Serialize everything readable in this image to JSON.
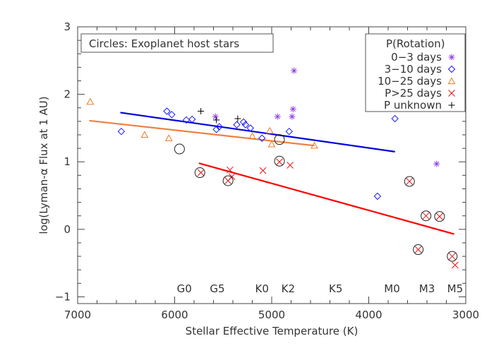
{
  "chart_data": {
    "type": "scatter",
    "title": "",
    "xlabel": "Stellar Effective Temperature (K)",
    "ylabel": "log(Lyman-α Flux at 1 AU)",
    "xlim": [
      7000,
      3000
    ],
    "ylim": [
      -1.1,
      3
    ],
    "x_ticks": [
      7000,
      6000,
      5000,
      4000,
      3000
    ],
    "y_ticks": [
      -1,
      0,
      1,
      2,
      3
    ],
    "x_tick_labels": [
      "7000",
      "6000",
      "5000",
      "4000",
      "3000"
    ],
    "y_tick_labels": [
      "−1",
      "0",
      "1",
      "2",
      "3"
    ],
    "grid": false,
    "annotation": "Circles: Exoplanet host stars",
    "spectral_types": [
      {
        "label": "G0",
        "teff": 5900
      },
      {
        "label": "G5",
        "teff": 5560
      },
      {
        "label": "K0",
        "teff": 5100
      },
      {
        "label": "K2",
        "teff": 4830
      },
      {
        "label": "K5",
        "teff": 4340
      },
      {
        "label": "M0",
        "teff": 3760
      },
      {
        "label": "M3",
        "teff": 3400
      },
      {
        "label": "M5",
        "teff": 3110
      }
    ],
    "legend": {
      "title": "P(Rotation)",
      "position": "top-right",
      "entries": [
        {
          "label": "0−3 days",
          "marker": "asterisk",
          "color": "#9040e0"
        },
        {
          "label": "3−10 days",
          "marker": "diamond",
          "color": "#1a1aff"
        },
        {
          "label": "10−25 days",
          "marker": "triangle",
          "color": "#f07820"
        },
        {
          "label": "P>25 days",
          "marker": "x",
          "color": "#e81010"
        },
        {
          "label": "P unknown",
          "marker": "plus",
          "color": "#000000"
        }
      ]
    },
    "series": [
      {
        "marker": "asterisk",
        "color": "#9040e0",
        "points": [
          {
            "x": 5580,
            "y": 1.67
          },
          {
            "x": 4940,
            "y": 1.67
          },
          {
            "x": 4790,
            "y": 1.67
          },
          {
            "x": 4780,
            "y": 1.78
          },
          {
            "x": 4770,
            "y": 2.35
          },
          {
            "x": 3300,
            "y": 0.97
          }
        ]
      },
      {
        "marker": "diamond",
        "color": "#1a1aff",
        "points": [
          {
            "x": 6550,
            "y": 1.45
          },
          {
            "x": 6080,
            "y": 1.75
          },
          {
            "x": 6030,
            "y": 1.7
          },
          {
            "x": 5880,
            "y": 1.62
          },
          {
            "x": 5820,
            "y": 1.63
          },
          {
            "x": 5570,
            "y": 1.48
          },
          {
            "x": 5540,
            "y": 1.52
          },
          {
            "x": 5360,
            "y": 1.55
          },
          {
            "x": 5290,
            "y": 1.59
          },
          {
            "x": 5270,
            "y": 1.55
          },
          {
            "x": 5220,
            "y": 1.5
          },
          {
            "x": 5100,
            "y": 1.35
          },
          {
            "x": 4820,
            "y": 1.45
          },
          {
            "x": 3730,
            "y": 1.64
          },
          {
            "x": 3910,
            "y": 0.49
          }
        ]
      },
      {
        "marker": "triangle",
        "color": "#f07820",
        "points": [
          {
            "x": 6870,
            "y": 1.89
          },
          {
            "x": 6310,
            "y": 1.4
          },
          {
            "x": 6060,
            "y": 1.35
          },
          {
            "x": 5200,
            "y": 1.38
          },
          {
            "x": 5020,
            "y": 1.46
          },
          {
            "x": 5000,
            "y": 1.26
          },
          {
            "x": 4560,
            "y": 1.24
          }
        ]
      },
      {
        "marker": "x",
        "color": "#e81010",
        "points": [
          {
            "x": 5430,
            "y": 0.88
          },
          {
            "x": 5410,
            "y": 0.78
          },
          {
            "x": 5090,
            "y": 0.87
          },
          {
            "x": 4810,
            "y": 0.95
          },
          {
            "x": 3110,
            "y": -0.53
          },
          {
            "x": 3580,
            "y": 0.71
          },
          {
            "x": 3410,
            "y": 0.2
          },
          {
            "x": 3270,
            "y": 0.19
          },
          {
            "x": 3490,
            "y": -0.3
          },
          {
            "x": 3140,
            "y": -0.4
          },
          {
            "x": 4920,
            "y": 1.0
          },
          {
            "x": 5450,
            "y": 0.72
          },
          {
            "x": 5730,
            "y": 0.84
          }
        ]
      },
      {
        "marker": "plus",
        "color": "#000000",
        "points": [
          {
            "x": 5730,
            "y": 1.75
          },
          {
            "x": 5570,
            "y": 1.62
          },
          {
            "x": 5350,
            "y": 1.64
          }
        ]
      }
    ],
    "host_stars": [
      {
        "x": 5950,
        "y": 1.19
      },
      {
        "x": 5740,
        "y": 0.84
      },
      {
        "x": 5450,
        "y": 0.72
      },
      {
        "x": 4920,
        "y": 1.01
      },
      {
        "x": 4920,
        "y": 1.33
      },
      {
        "x": 3580,
        "y": 0.71
      },
      {
        "x": 3410,
        "y": 0.2
      },
      {
        "x": 3270,
        "y": 0.19
      },
      {
        "x": 3490,
        "y": -0.3
      },
      {
        "x": 3140,
        "y": -0.4
      }
    ],
    "fits": [
      {
        "color": "#0000dd",
        "x": [
          6560,
          3730
        ],
        "y": [
          1.73,
          1.15
        ]
      },
      {
        "color": "#f08040",
        "x": [
          6880,
          4560
        ],
        "y": [
          1.61,
          1.24
        ]
      },
      {
        "color": "#ff0000",
        "x": [
          5750,
          3120
        ],
        "y": [
          0.98,
          -0.07
        ]
      }
    ]
  }
}
